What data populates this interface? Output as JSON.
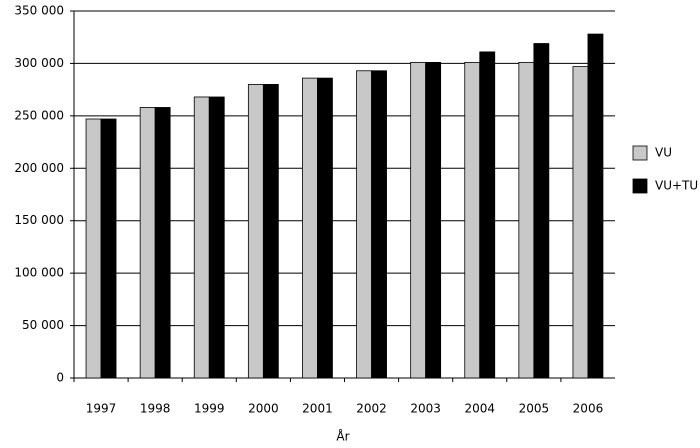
{
  "chart_data": {
    "type": "bar",
    "x_label": "År",
    "categories": [
      "1997",
      "1998",
      "1999",
      "2000",
      "2001",
      "2002",
      "2003",
      "2004",
      "2005",
      "2006"
    ],
    "series": [
      {
        "name": "VU",
        "color": "#c8c8c8",
        "values": [
          247000,
          258000,
          268000,
          280000,
          286000,
          293000,
          301000,
          301000,
          301000,
          297000
        ]
      },
      {
        "name": "VU+TU",
        "color": "#000000",
        "values": [
          247000,
          258000,
          268000,
          280000,
          286000,
          293000,
          301000,
          311000,
          319000,
          328000
        ]
      }
    ],
    "ylim": [
      0,
      350000
    ],
    "yticks": [
      0,
      {
        "value": 50000,
        "label": "50 000"
      },
      {
        "value": 100000,
        "label": "100 000"
      },
      {
        "value": 150000,
        "label": "150 000"
      },
      {
        "value": 200000,
        "label": "200 000"
      },
      {
        "value": 250000,
        "label": "250 000"
      },
      {
        "value": 300000,
        "label": "300 000"
      },
      {
        "value": 350000,
        "label": "350 000"
      }
    ],
    "grid": true,
    "legend": "right"
  }
}
